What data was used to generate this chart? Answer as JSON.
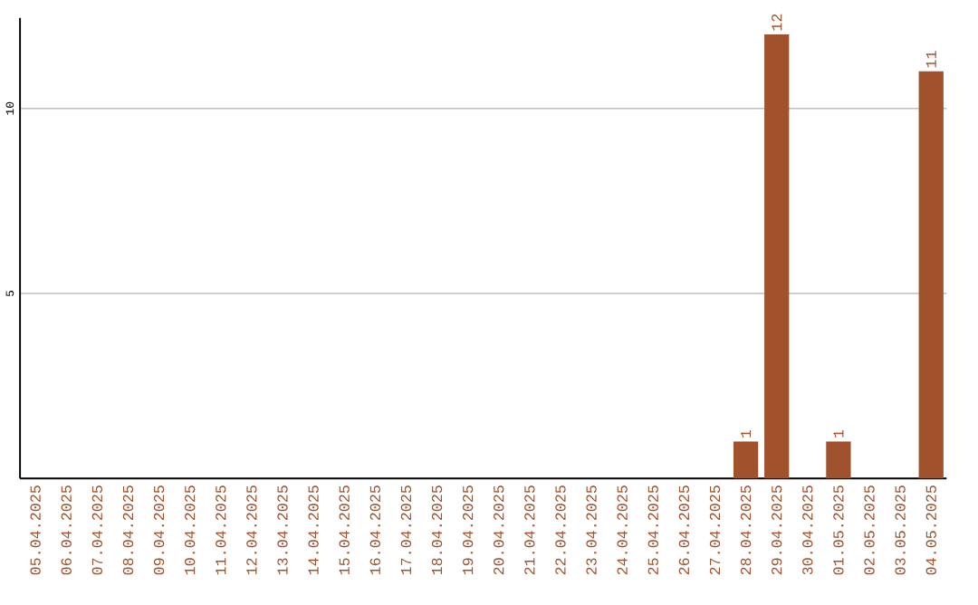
{
  "chart_data": {
    "type": "bar",
    "categories": [
      "05.04.2025",
      "06.04.2025",
      "07.04.2025",
      "08.04.2025",
      "09.04.2025",
      "10.04.2025",
      "11.04.2025",
      "12.04.2025",
      "13.04.2025",
      "14.04.2025",
      "15.04.2025",
      "16.04.2025",
      "17.04.2025",
      "18.04.2025",
      "19.04.2025",
      "20.04.2025",
      "21.04.2025",
      "22.04.2025",
      "23.04.2025",
      "24.04.2025",
      "25.04.2025",
      "26.04.2025",
      "27.04.2025",
      "28.04.2025",
      "29.04.2025",
      "30.04.2025",
      "01.05.2025",
      "02.05.2025",
      "03.05.2025",
      "04.05.2025"
    ],
    "values": [
      0,
      0,
      0,
      0,
      0,
      0,
      0,
      0,
      0,
      0,
      0,
      0,
      0,
      0,
      0,
      0,
      0,
      0,
      0,
      0,
      0,
      0,
      0,
      1,
      12,
      0,
      1,
      0,
      0,
      11
    ],
    "value_labels": [
      null,
      null,
      null,
      null,
      null,
      null,
      null,
      null,
      null,
      null,
      null,
      null,
      null,
      null,
      null,
      null,
      null,
      null,
      null,
      null,
      null,
      null,
      null,
      "1",
      "12",
      null,
      "1",
      null,
      null,
      "11"
    ],
    "color": "#a0522d",
    "ylim": [
      0,
      12.45
    ],
    "yticks": [
      5,
      10
    ],
    "grid": "y"
  }
}
